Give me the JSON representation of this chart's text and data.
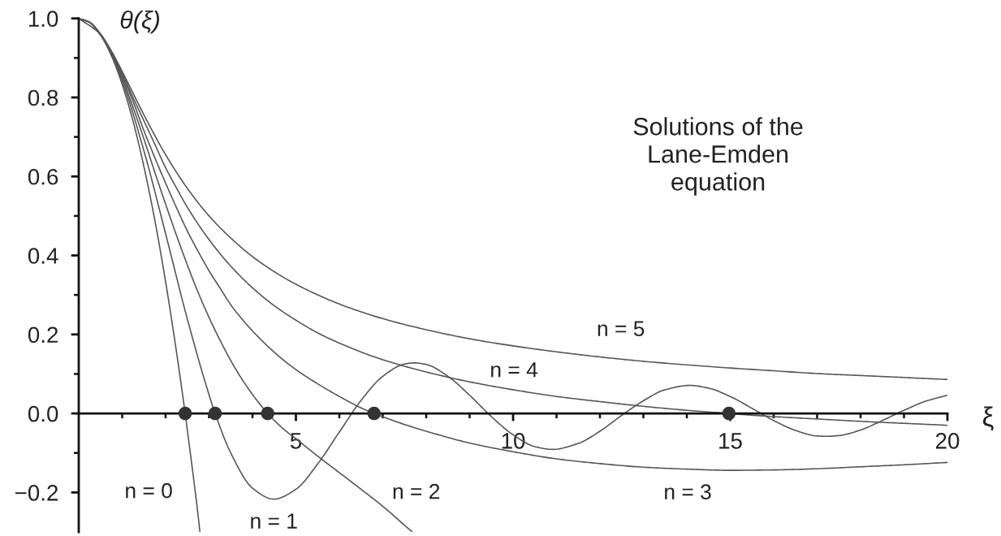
{
  "chart_data": {
    "type": "line",
    "title": "Solutions of the Lane-Emden equation",
    "xlabel": "ξ",
    "ylabel": "θ(ξ)",
    "xlim": [
      0,
      20
    ],
    "ylim": [
      -0.3,
      1.0
    ],
    "xticks": [
      {
        "value": 1,
        "label": null
      },
      {
        "value": 2,
        "label": null
      },
      {
        "value": 3,
        "label": null
      },
      {
        "value": 4,
        "label": null
      },
      5,
      {
        "value": 6,
        "label": null
      },
      {
        "value": 7,
        "label": null
      },
      {
        "value": 8,
        "label": null
      },
      {
        "value": 9,
        "label": null
      },
      10,
      {
        "value": 11,
        "label": null
      },
      {
        "value": 12,
        "label": null
      },
      {
        "value": 13,
        "label": null
      },
      {
        "value": 14,
        "label": null
      },
      15,
      {
        "value": 16,
        "label": null
      },
      {
        "value": 17,
        "label": null
      },
      {
        "value": 18,
        "label": null
      },
      {
        "value": 19,
        "label": null
      },
      20
    ],
    "yticks": [
      {
        "value": -0.2,
        "label": "−0.2"
      },
      {
        "value": -0.1,
        "label": null
      },
      {
        "value": 0,
        "label": "0.0"
      },
      {
        "value": 0.1,
        "label": null
      },
      0.2,
      {
        "value": 0.3,
        "label": null
      },
      0.4,
      {
        "value": 0.5,
        "label": null
      },
      0.6,
      {
        "value": 0.7,
        "label": null
      },
      0.8,
      {
        "value": 0.9,
        "label": null
      },
      {
        "value": 1,
        "label": "1.0"
      }
    ],
    "series": [
      {
        "name": "n = 0",
        "color": "#555555",
        "x": [
          0,
          0.25,
          0.5,
          0.75,
          1,
          1.25,
          1.5,
          1.75,
          2,
          2.25,
          2.45,
          2.5,
          2.75,
          2.79
        ],
        "values": [
          1,
          0.99,
          0.958,
          0.906,
          0.833,
          0.74,
          0.625,
          0.49,
          0.333,
          0.156,
          0,
          -0.042,
          -0.26,
          -0.3
        ]
      },
      {
        "name": "n = 1",
        "color": "#555555",
        "x": [
          0,
          0.5,
          1,
          1.5,
          2,
          2.5,
          3,
          3.14,
          3.5,
          4,
          4.49,
          5,
          5.5,
          6,
          6.5,
          7,
          7.5,
          7.73,
          8,
          8.5,
          9,
          9.5,
          10,
          10.5,
          10.9,
          11.5,
          12,
          12.5,
          13,
          13.5,
          14.07,
          14.5,
          15,
          15.5,
          16,
          16.5,
          17,
          17.22,
          17.5,
          18,
          18.5,
          19,
          19.5,
          20
        ],
        "values": [
          1,
          0.959,
          0.841,
          0.665,
          0.455,
          0.239,
          0.047,
          0,
          -0.1,
          -0.189,
          -0.217,
          -0.192,
          -0.128,
          -0.047,
          0.033,
          0.094,
          0.125,
          0.128,
          0.124,
          0.094,
          0.046,
          -0.008,
          -0.054,
          -0.084,
          -0.091,
          -0.076,
          -0.045,
          -0.005,
          0.032,
          0.06,
          0.071,
          0.064,
          0.043,
          0.013,
          -0.018,
          -0.043,
          -0.057,
          -0.058,
          -0.056,
          -0.042,
          -0.018,
          0.008,
          0.031,
          0.046
        ]
      },
      {
        "name": "n = 2",
        "color": "#555555",
        "x": [
          0,
          0.25,
          0.5,
          0.75,
          1,
          1.25,
          1.5,
          1.75,
          2,
          2.25,
          2.5,
          2.75,
          3,
          3.25,
          3.5,
          3.75,
          4,
          4.35,
          4.7,
          5,
          5.5,
          6,
          6.5,
          7,
          7.5,
          7.68
        ],
        "values": [
          1,
          0.99,
          0.959,
          0.911,
          0.849,
          0.775,
          0.695,
          0.611,
          0.53,
          0.451,
          0.376,
          0.306,
          0.243,
          0.186,
          0.134,
          0.088,
          0.048,
          0,
          -0.038,
          -0.064,
          -0.108,
          -0.15,
          -0.192,
          -0.235,
          -0.283,
          -0.3
        ]
      },
      {
        "name": "n = 3",
        "color": "#555555",
        "x": [
          0,
          0.25,
          0.5,
          0.75,
          1,
          1.25,
          1.5,
          1.75,
          2,
          2.25,
          2.5,
          2.75,
          3,
          3.25,
          3.5,
          3.75,
          4,
          4.5,
          5,
          5.5,
          6,
          6.5,
          6.8,
          7.5,
          8,
          9,
          10,
          11,
          12,
          13,
          14,
          15,
          16,
          17,
          18,
          19,
          20
        ],
        "values": [
          1,
          0.99,
          0.96,
          0.913,
          0.855,
          0.79,
          0.716,
          0.648,
          0.583,
          0.521,
          0.462,
          0.41,
          0.361,
          0.318,
          0.275,
          0.24,
          0.209,
          0.155,
          0.111,
          0.075,
          0.043,
          0.014,
          0,
          -0.028,
          -0.045,
          -0.075,
          -0.097,
          -0.115,
          -0.127,
          -0.136,
          -0.141,
          -0.144,
          -0.143,
          -0.14,
          -0.135,
          -0.13,
          -0.124
        ]
      },
      {
        "name": "n = 4",
        "color": "#555555",
        "x": [
          0,
          0.25,
          0.5,
          0.75,
          1,
          1.25,
          1.5,
          1.75,
          2,
          2.25,
          2.5,
          3,
          3.5,
          4,
          4.5,
          5,
          5.5,
          6,
          7,
          8,
          9,
          10,
          11,
          12,
          13,
          14,
          14.97,
          16,
          17,
          18,
          19,
          20
        ],
        "values": [
          1,
          0.99,
          0.96,
          0.916,
          0.861,
          0.8,
          0.741,
          0.682,
          0.622,
          0.571,
          0.522,
          0.44,
          0.373,
          0.318,
          0.273,
          0.236,
          0.204,
          0.178,
          0.136,
          0.105,
          0.08,
          0.06,
          0.043,
          0.03,
          0.018,
          0.008,
          0,
          -0.008,
          -0.014,
          -0.02,
          -0.025,
          -0.03
        ]
      },
      {
        "name": "n = 5",
        "color": "#555555",
        "x": [
          0,
          0.25,
          0.5,
          0.75,
          1,
          1.25,
          1.5,
          1.75,
          2,
          2.5,
          3,
          3.5,
          4,
          4.5,
          5,
          6,
          7,
          8,
          9,
          10,
          11,
          12,
          13,
          14,
          15,
          16,
          17,
          18,
          19,
          20
        ],
        "values": [
          1,
          0.99,
          0.961,
          0.918,
          0.866,
          0.811,
          0.756,
          0.704,
          0.655,
          0.57,
          0.5,
          0.444,
          0.397,
          0.359,
          0.327,
          0.277,
          0.24,
          0.212,
          0.189,
          0.171,
          0.156,
          0.143,
          0.132,
          0.123,
          0.115,
          0.108,
          0.101,
          0.096,
          0.091,
          0.086
        ]
      },
      {
        "type": "scatter",
        "marker": "circle",
        "color": "#333333",
        "x": [
          2.45,
          3.14,
          4.35,
          6.8,
          14.97
        ],
        "values": [
          0,
          0,
          0,
          0,
          0
        ]
      }
    ]
  }
}
